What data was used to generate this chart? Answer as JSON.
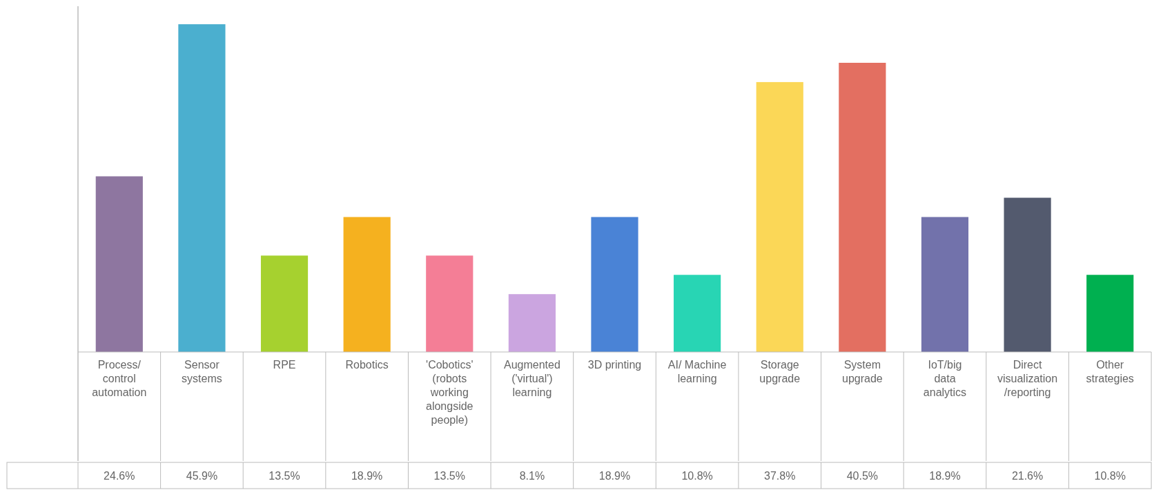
{
  "chart_data": {
    "type": "bar",
    "categories": [
      "Process/ control automation",
      "Sensor systems",
      "RPE",
      "Robotics",
      "'Cobotics' (robots working alongside people)",
      "Augmented ('virtual') learning",
      "3D printing",
      "AI/ Machine learning",
      "Storage upgrade",
      "System upgrade",
      "IoT/big data analytics",
      "Direct visualization /reporting",
      "Other strategies"
    ],
    "values": [
      24.6,
      45.9,
      13.5,
      18.9,
      13.5,
      8.1,
      18.9,
      10.8,
      37.8,
      40.5,
      18.9,
      21.6,
      10.8
    ],
    "colors": [
      "#8e76a0",
      "#4bafcf",
      "#a6d12f",
      "#f5b11f",
      "#f47e96",
      "#cba5e0",
      "#4a83d6",
      "#28d5b4",
      "#fbd757",
      "#e36f61",
      "#7272ab",
      "#535a6e",
      "#00b050"
    ],
    "value_labels": [
      "24.6%",
      "45.9%",
      "13.5%",
      "18.9%",
      "13.5%",
      "8.1%",
      "18.9%",
      "10.8%",
      "37.8%",
      "40.5%",
      "18.9%",
      "21.6%",
      "10.8%"
    ]
  }
}
